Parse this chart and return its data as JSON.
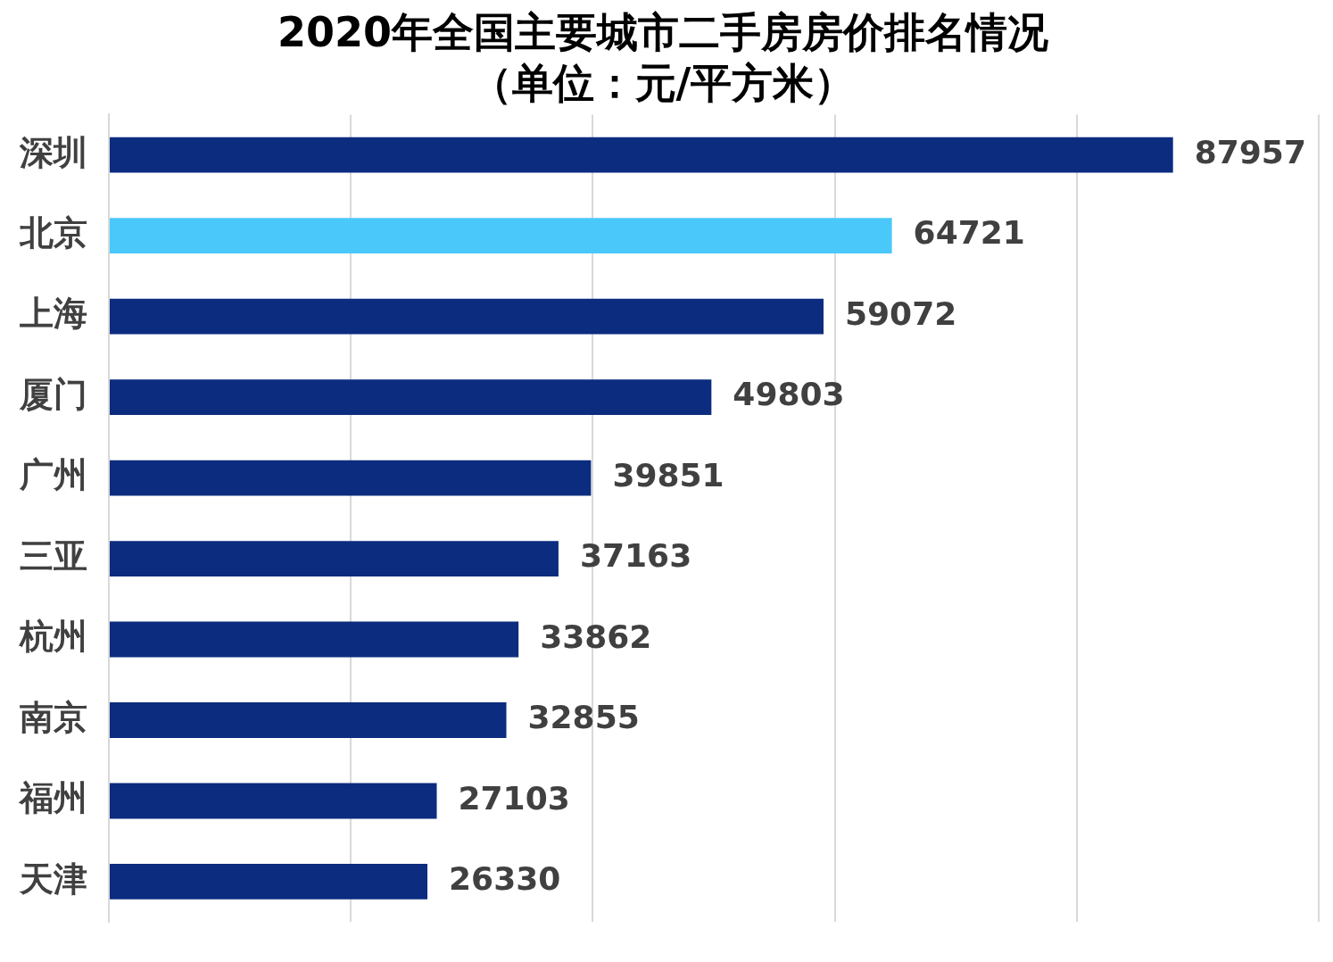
{
  "chart_data": {
    "type": "bar",
    "orientation": "horizontal",
    "title": "2020年全国主要城市二手房房价排名情况",
    "subtitle": "（单位：元/平方米）",
    "categories": [
      "深圳",
      "北京",
      "上海",
      "厦门",
      "广州",
      "三亚",
      "杭州",
      "南京",
      "福州",
      "天津"
    ],
    "values": [
      87957,
      64721,
      59072,
      49803,
      39851,
      37163,
      33862,
      32855,
      27103,
      26330
    ],
    "colors": [
      "#0c2c7f",
      "#4ac8fa",
      "#0c2c7f",
      "#0c2c7f",
      "#0c2c7f",
      "#0c2c7f",
      "#0c2c7f",
      "#0c2c7f",
      "#0c2c7f",
      "#0c2c7f"
    ],
    "xlim": [
      0,
      100000
    ],
    "xticks": [
      {
        "value": 0,
        "label": null
      },
      {
        "value": 20000,
        "label": null
      },
      {
        "value": 40000,
        "label": null
      },
      {
        "value": 60000,
        "label": null
      },
      {
        "value": 80000,
        "label": null
      },
      {
        "value": 100000,
        "label": null
      }
    ],
    "grid": "x",
    "data_labels": true,
    "tick_labels": "y",
    "legend": false
  }
}
